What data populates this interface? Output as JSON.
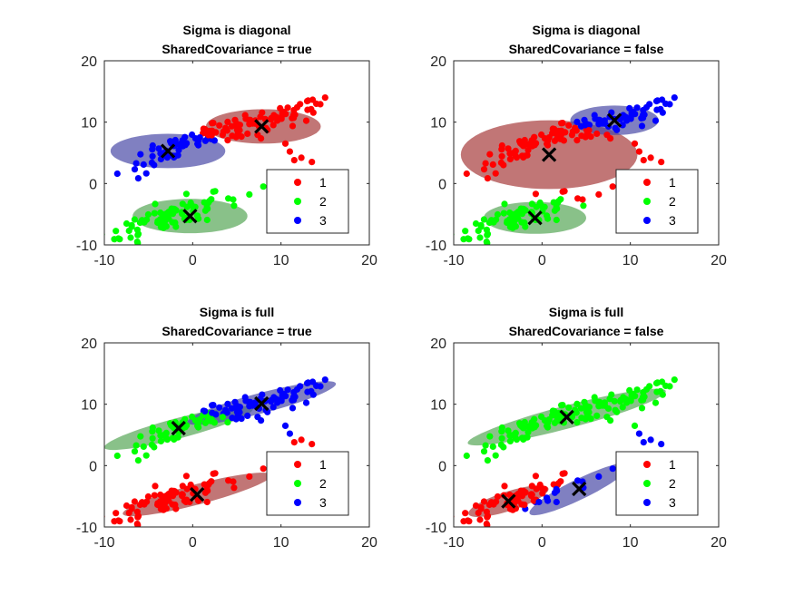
{
  "chart_data": [
    {
      "type": "scatter",
      "title": [
        "Sigma is diagonal",
        "SharedCovariance = true"
      ],
      "xlim": [
        -10,
        20
      ],
      "ylim": [
        -10,
        20
      ],
      "xticks": [
        -10,
        0,
        10,
        20
      ],
      "yticks": [
        -10,
        0,
        10,
        20
      ],
      "legend": {
        "placement": "lower-right",
        "labels": [
          "1",
          "2",
          "3"
        ]
      },
      "series_colors": [
        "#ff0000",
        "#00ff00",
        "#0000ff"
      ],
      "ellipse_colors": [
        "#a63c3c",
        "#57a657",
        "#4a4aa6"
      ],
      "ellipses": [
        {
          "cluster": 1,
          "cx": 8.0,
          "cy": 9.3,
          "rx": 6.5,
          "ry": 2.8,
          "angle": 0
        },
        {
          "cluster": 2,
          "cx": -0.3,
          "cy": -5.3,
          "rx": 6.5,
          "ry": 2.8,
          "angle": 0
        },
        {
          "cluster": 3,
          "cx": -2.8,
          "cy": 5.3,
          "rx": 6.5,
          "ry": 2.8,
          "angle": 0
        }
      ],
      "centroids": [
        {
          "x": 7.8,
          "y": 9.3
        },
        {
          "x": -0.3,
          "y": -5.3
        },
        {
          "x": -2.8,
          "y": 5.3
        }
      ],
      "clusters": {
        "1": "upper-right",
        "2": "bottom",
        "3": "upper-left"
      }
    },
    {
      "type": "scatter",
      "title": [
        "Sigma is diagonal",
        "SharedCovariance = false"
      ],
      "xlim": [
        -10,
        20
      ],
      "ylim": [
        -10,
        20
      ],
      "xticks": [
        -10,
        0,
        10,
        20
      ],
      "yticks": [
        -10,
        0,
        10,
        20
      ],
      "legend": {
        "placement": "lower-right",
        "labels": [
          "1",
          "2",
          "3"
        ]
      },
      "series_colors": [
        "#ff0000",
        "#00ff00",
        "#0000ff"
      ],
      "ellipse_colors": [
        "#a63c3c",
        "#57a657",
        "#4a4aa6"
      ],
      "ellipses": [
        {
          "cluster": 1,
          "cx": 0.8,
          "cy": 4.7,
          "rx": 10.0,
          "ry": 5.6,
          "angle": 0
        },
        {
          "cluster": 2,
          "cx": -0.8,
          "cy": -5.6,
          "rx": 5.8,
          "ry": 2.6,
          "angle": 0
        },
        {
          "cluster": 3,
          "cx": 8.2,
          "cy": 10.3,
          "rx": 5.0,
          "ry": 2.4,
          "angle": 0
        }
      ],
      "centroids": [
        {
          "x": 0.8,
          "y": 4.7
        },
        {
          "x": -0.8,
          "y": -5.6
        },
        {
          "x": 8.2,
          "y": 10.3
        }
      ],
      "clusters": {
        "1": "upper-left",
        "2": "bottom",
        "3": "upper-right"
      }
    },
    {
      "type": "scatter",
      "title": [
        "Sigma is full",
        "SharedCovariance = true"
      ],
      "xlim": [
        -10,
        20
      ],
      "ylim": [
        -10,
        20
      ],
      "xticks": [
        -10,
        0,
        10,
        20
      ],
      "yticks": [
        -10,
        0,
        10,
        20
      ],
      "legend": {
        "placement": "lower-right",
        "labels": [
          "1",
          "2",
          "3"
        ]
      },
      "series_colors": [
        "#ff0000",
        "#00ff00",
        "#0000ff"
      ],
      "ellipse_colors": [
        "#a63c3c",
        "#57a657",
        "#4a4aa6"
      ],
      "ellipses": [
        {
          "cluster": 1,
          "cx": 0.5,
          "cy": -4.7,
          "rx": 9.0,
          "ry": 1.6,
          "angle": 21
        },
        {
          "cluster": 2,
          "cx": -1.6,
          "cy": 6.1,
          "rx": 9.0,
          "ry": 1.6,
          "angle": 21
        },
        {
          "cluster": 3,
          "cx": 7.8,
          "cy": 10.2,
          "rx": 9.0,
          "ry": 1.6,
          "angle": 21
        }
      ],
      "centroids": [
        {
          "x": 0.5,
          "y": -4.7
        },
        {
          "x": -1.6,
          "y": 6.1
        },
        {
          "x": 7.8,
          "y": 10.1
        }
      ],
      "clusters": {
        "1": "bottom",
        "2": "middle-left",
        "3": "upper-right"
      }
    },
    {
      "type": "scatter",
      "title": [
        "Sigma is full",
        "SharedCovariance = false"
      ],
      "xlim": [
        -10,
        20
      ],
      "ylim": [
        -10,
        20
      ],
      "xticks": [
        -10,
        0,
        10,
        20
      ],
      "yticks": [
        -10,
        0,
        10,
        20
      ],
      "legend": {
        "placement": "lower-right",
        "labels": [
          "1",
          "2",
          "3"
        ]
      },
      "series_colors": [
        "#ff0000",
        "#00ff00",
        "#0000ff"
      ],
      "ellipse_colors": [
        "#a63c3c",
        "#57a657",
        "#4a4aa6"
      ],
      "ellipses": [
        {
          "cluster": 1,
          "cx": -3.8,
          "cy": -5.8,
          "rx": 5.0,
          "ry": 1.5,
          "angle": 26
        },
        {
          "cluster": 2,
          "cx": 2.8,
          "cy": 7.9,
          "rx": 12.0,
          "ry": 1.8,
          "angle": 21
        },
        {
          "cluster": 3,
          "cx": 4.3,
          "cy": -3.8,
          "rx": 7.0,
          "ry": 1.5,
          "angle": 36
        }
      ],
      "centroids": [
        {
          "x": -3.8,
          "y": -5.8
        },
        {
          "x": 2.8,
          "y": 7.9
        },
        {
          "x": 4.2,
          "y": -3.8
        }
      ],
      "clusters": {
        "1": "lower-left",
        "2": "upper",
        "3": "lower-middle"
      }
    }
  ]
}
